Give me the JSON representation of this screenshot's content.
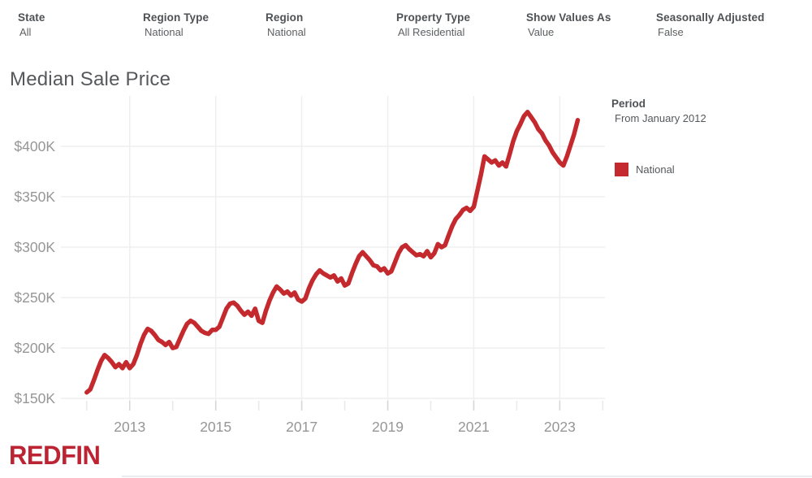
{
  "filters": [
    {
      "label": "State",
      "value": "All"
    },
    {
      "label": "Region Type",
      "value": "National"
    },
    {
      "label": "Region",
      "value": "National"
    },
    {
      "label": "Property Type",
      "value": "All Residential"
    },
    {
      "label": "Show Values As",
      "value": "Value"
    },
    {
      "label": "Seasonally Adjusted",
      "value": "False"
    }
  ],
  "title": "Median Sale Price",
  "legend": {
    "period_label": "Period",
    "period_value": "From January 2012",
    "series_label": "National"
  },
  "logo_text": "REDFIN",
  "colors": {
    "line": "#c4292e",
    "swatch": "#c4292e",
    "logo": "#bc2433",
    "grid": "#efefef",
    "tick_major": "#d6d6d6",
    "tick_minor": "#e9e9e9",
    "axis_text": "#969696"
  },
  "chart_data": {
    "type": "line",
    "title": "Median Sale Price",
    "units": "USD thousands",
    "grid": true,
    "legend_position": "right",
    "xlim": [
      2011.4,
      2024.05
    ],
    "ylim_k": [
      138,
      450
    ],
    "y_ticks_k": [
      150,
      200,
      250,
      300,
      350,
      400
    ],
    "y_tick_labels": [
      "$150K",
      "$200K",
      "$250K",
      "$300K",
      "$350K",
      "$400K"
    ],
    "x_tick_years": [
      2013,
      2015,
      2017,
      2019,
      2021,
      2023
    ],
    "x_tick_labels": [
      "2013",
      "2015",
      "2017",
      "2019",
      "2021",
      "2023"
    ],
    "x_minor_tick_years": [
      2012,
      2013,
      2014,
      2015,
      2016,
      2017,
      2018,
      2019,
      2020,
      2021,
      2022,
      2023,
      2024
    ],
    "series": [
      {
        "name": "National",
        "start_year": 2012,
        "start_month": 1,
        "frequency": "monthly",
        "values_k": [
          156,
          159,
          168,
          178,
          187,
          193,
          190,
          186,
          181,
          184,
          180,
          186,
          180,
          184,
          193,
          204,
          213,
          219,
          217,
          213,
          208,
          206,
          203,
          206,
          200,
          201,
          209,
          217,
          224,
          227,
          225,
          221,
          217,
          215,
          214,
          218,
          218,
          221,
          230,
          239,
          244,
          245,
          242,
          237,
          233,
          236,
          232,
          239,
          227,
          225,
          237,
          247,
          255,
          261,
          258,
          254,
          256,
          252,
          255,
          248,
          246,
          249,
          259,
          267,
          273,
          277,
          274,
          272,
          270,
          272,
          266,
          269,
          262,
          264,
          274,
          283,
          291,
          295,
          291,
          287,
          282,
          281,
          277,
          279,
          274,
          276,
          285,
          294,
          300,
          302,
          298,
          295,
          292,
          293,
          291,
          296,
          290,
          294,
          303,
          300,
          302,
          312,
          321,
          328,
          332,
          337,
          339,
          336,
          340,
          356,
          372,
          390,
          387,
          384,
          386,
          381,
          384,
          380,
          392,
          405,
          415,
          422,
          430,
          434,
          429,
          424,
          417,
          413,
          406,
          401,
          394,
          389,
          384,
          381,
          390,
          401,
          412,
          426
        ]
      }
    ]
  }
}
